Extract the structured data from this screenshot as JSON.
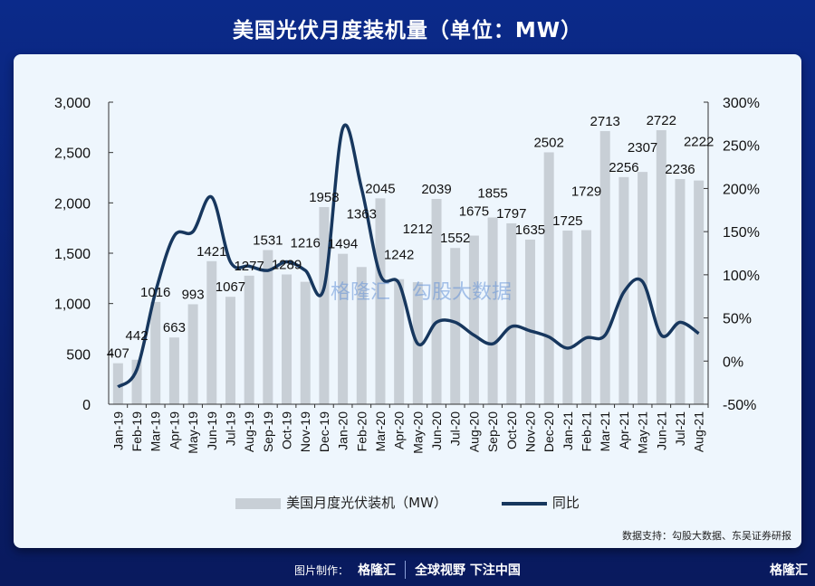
{
  "title": "美国光伏月度装机量（单位：MW）",
  "chart_data": {
    "type": "bar+line",
    "categories": [
      "Jan-19",
      "Feb-19",
      "Mar-19",
      "Apr-19",
      "May-19",
      "Jun-19",
      "Jul-19",
      "Aug-19",
      "Sep-19",
      "Oct-19",
      "Nov-19",
      "Dec-19",
      "Jan-20",
      "Feb-20",
      "Mar-20",
      "Apr-20",
      "May-20",
      "Jun-20",
      "Jul-20",
      "Aug-20",
      "Sep-20",
      "Oct-20",
      "Nov-20",
      "Dec-20",
      "Jan-21",
      "Feb-21",
      "Mar-21",
      "Apr-21",
      "May-21",
      "Jun-21",
      "Jul-21",
      "Aug-21"
    ],
    "series": [
      {
        "name": "美国月度光伏装机（MW）",
        "type": "bar",
        "axis": "left",
        "color": "#c8cfd6",
        "values": [
          407,
          442,
          1016,
          663,
          993,
          1421,
          1067,
          1277,
          1531,
          1289,
          1216,
          1958,
          1494,
          1363,
          2045,
          1242,
          1212,
          2039,
          1552,
          1675,
          1855,
          1797,
          1635,
          2502,
          1725,
          1729,
          2713,
          2256,
          2307,
          2722,
          2236,
          2222
        ]
      },
      {
        "name": "同比",
        "type": "line",
        "axis": "right",
        "color": "#17375e",
        "values": [
          -30,
          -10,
          80,
          145,
          150,
          190,
          115,
          110,
          105,
          115,
          105,
          85,
          270,
          200,
          100,
          90,
          20,
          45,
          45,
          30,
          20,
          40,
          35,
          28,
          15,
          27,
          30,
          80,
          92,
          30,
          45,
          32
        ]
      }
    ],
    "left_axis": {
      "range": [
        0,
        3000
      ],
      "ticks": [
        "0",
        "500",
        "1,000",
        "1,500",
        "2,000",
        "2,500",
        "3,000"
      ]
    },
    "right_axis": {
      "range": [
        -50,
        300
      ],
      "ticks": [
        "-50%",
        "0%",
        "50%",
        "100%",
        "150%",
        "200%",
        "250%",
        "300%"
      ]
    },
    "grid": false,
    "legend": "bottom"
  },
  "legend": {
    "bar": "美国月度光伏装机（MW）",
    "line": "同比"
  },
  "source": "数据支持：勾股大数据、东吴证券研报",
  "footer": {
    "made_by": "图片制作：",
    "logo": "格隆汇",
    "slogan": "全球视野 下注中国",
    "corner_logo": "格隆汇"
  },
  "watermarks": [
    "格隆汇",
    "勾股大数据"
  ]
}
